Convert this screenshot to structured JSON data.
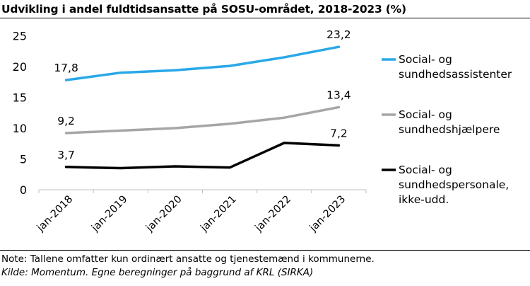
{
  "chart_data": {
    "type": "line",
    "title": "Udvikling i andel fuldtidsansatte på SOSU-området, 2018-2023 (%)",
    "categories": [
      "jan-2018",
      "jan-2019",
      "jan-2020",
      "jan-2021",
      "jan-2022",
      "jan-2023"
    ],
    "ylim": [
      0,
      25
    ],
    "yticks": [
      "0",
      "5",
      "10",
      "15",
      "20",
      "25"
    ],
    "grid": false,
    "legend": "right",
    "series": [
      {
        "name": "Social- og sundhedsassistenter",
        "legend_lines": [
          "Social- og",
          "sundhedsassistenter"
        ],
        "color": "#29A8E8",
        "values": [
          17.8,
          19.0,
          19.4,
          20.1,
          21.5,
          23.2
        ],
        "labels": {
          "0": "17,8",
          "5": "23,2"
        }
      },
      {
        "name": "Social- og sundhedshjælpere",
        "legend_lines": [
          "Social- og",
          "sundhedshjælpere"
        ],
        "color": "#A6A6A6",
        "values": [
          9.2,
          9.6,
          10.0,
          10.7,
          11.7,
          13.4
        ],
        "labels": {
          "0": "9,2",
          "5": "13,4"
        }
      },
      {
        "name": "Social- og sundhedspersonale, ikke-udd.",
        "legend_lines": [
          "Social- og",
          "sundhedspersonale,",
          "ikke-udd."
        ],
        "color": "#000000",
        "values": [
          3.7,
          3.5,
          3.8,
          3.6,
          7.6,
          7.2
        ],
        "labels": {
          "0": "3,7",
          "5": "7,2"
        }
      }
    ]
  },
  "footer": {
    "note": "Note: Tallene omfatter kun ordinært ansatte og tjenestemænd i kommunerne.",
    "source": "Kilde: Momentum. Egne beregninger på baggrund af KRL (SIRKA)"
  }
}
